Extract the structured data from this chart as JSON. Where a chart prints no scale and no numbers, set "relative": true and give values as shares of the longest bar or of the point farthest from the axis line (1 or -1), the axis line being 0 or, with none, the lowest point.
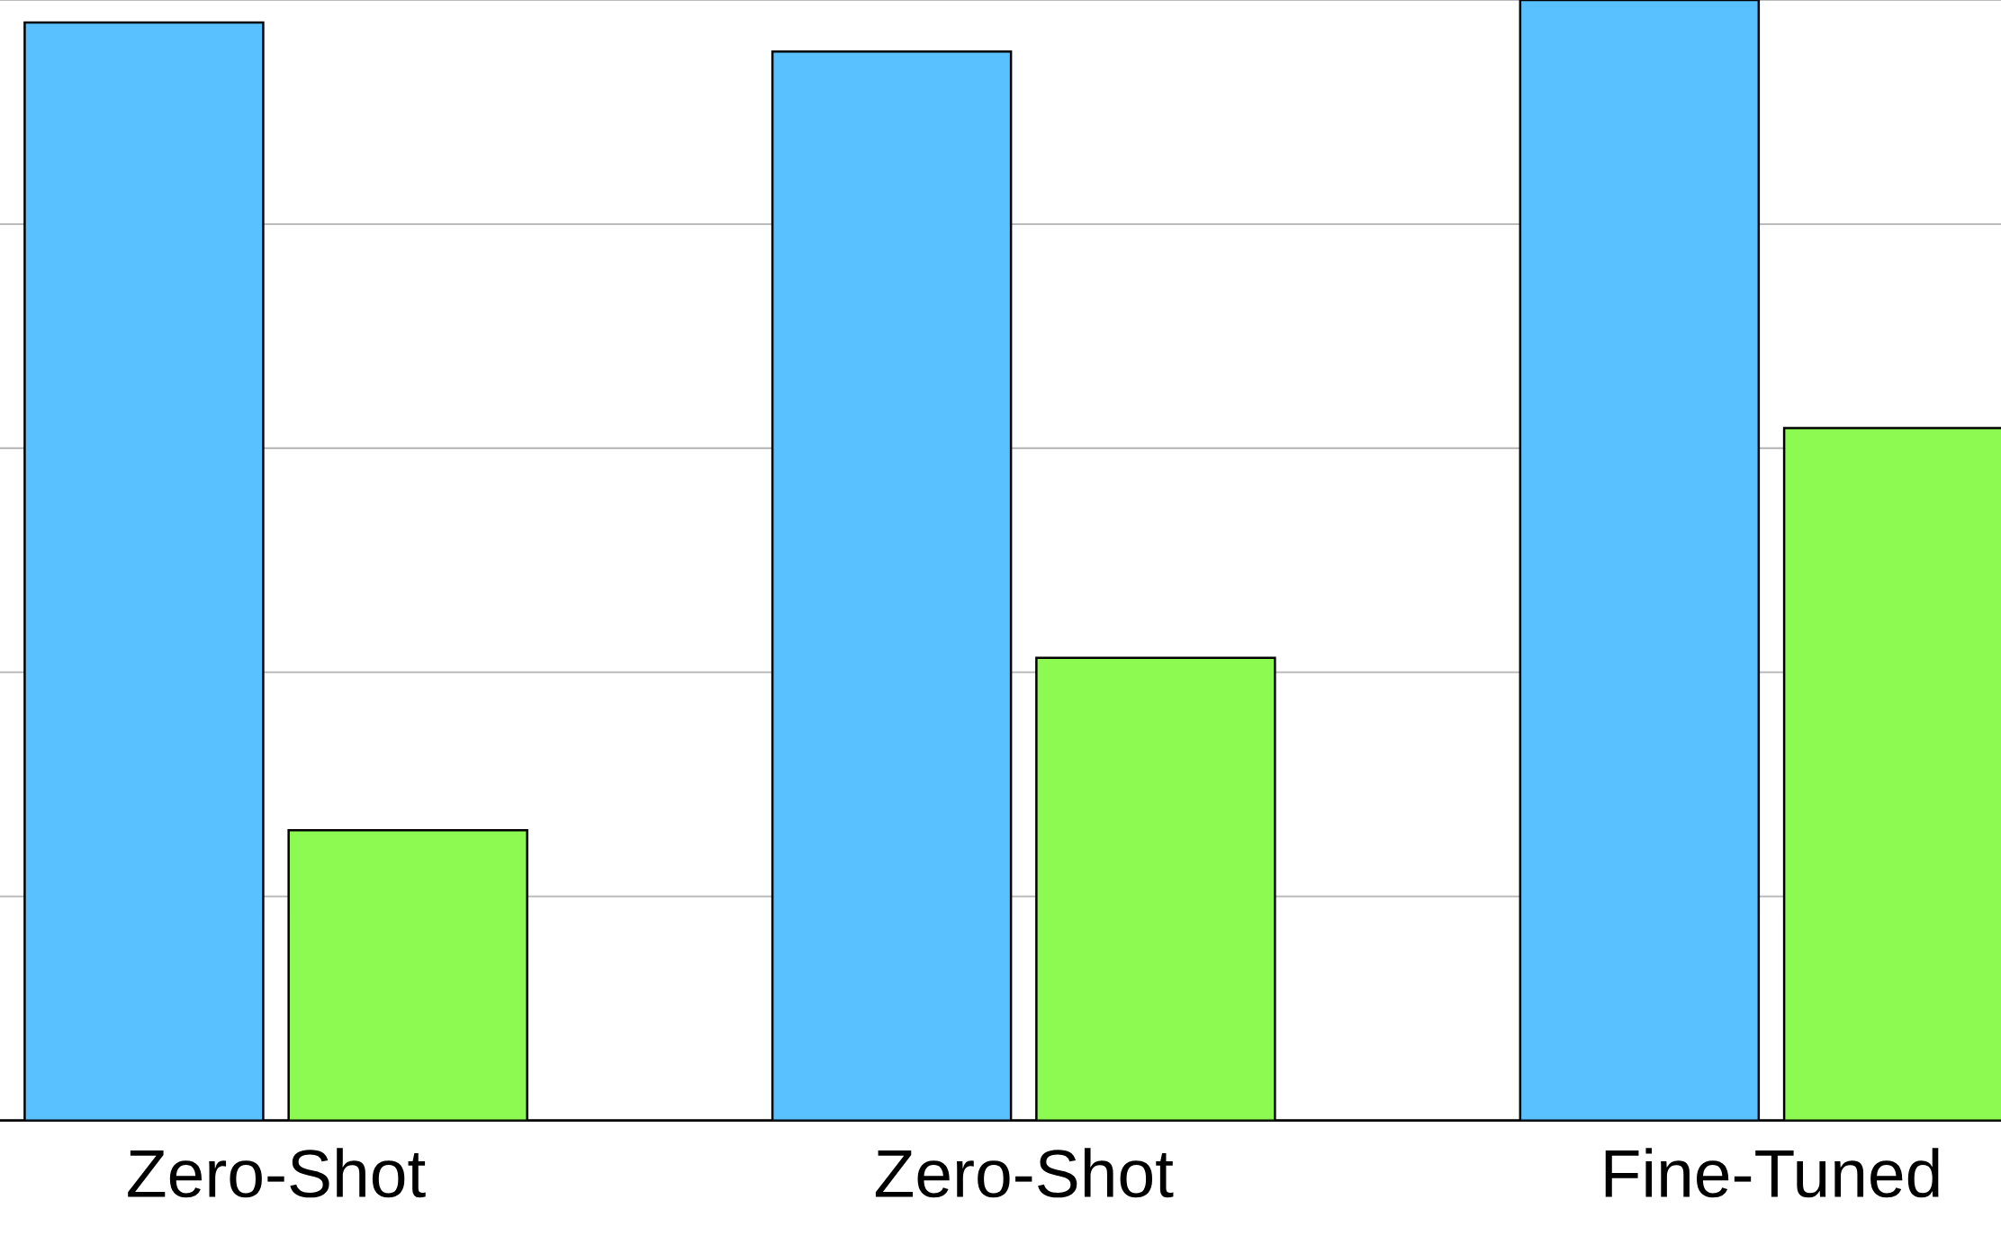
{
  "chart_data": {
    "type": "bar",
    "relative": true,
    "grid": "y",
    "categories": [
      "Zero-Shot",
      "Zero-Shot",
      "Fine-Tuned"
    ],
    "series": [
      {
        "color": "#59c1ff",
        "values": [
          0.98,
          0.954,
          1
        ]
      },
      {
        "color": "#8cfa50",
        "values": [
          0.259,
          0.413,
          0.618
        ]
      }
    ]
  }
}
